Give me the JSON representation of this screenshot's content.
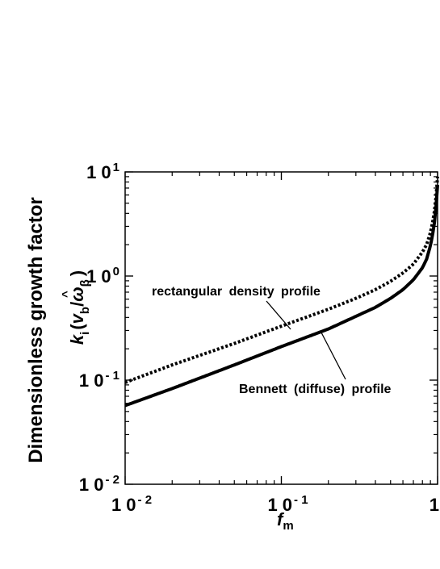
{
  "chart_data": {
    "type": "line",
    "xscale": "log",
    "yscale": "log",
    "xlim": [
      0.01,
      1
    ],
    "ylim": [
      0.01,
      10
    ],
    "grid": false,
    "xticks": [
      {
        "value": 0.01,
        "base": "1 0",
        "exp": "- 2"
      },
      {
        "value": 0.1,
        "base": "1 0",
        "exp": "- 1"
      },
      {
        "value": 1,
        "base": "1",
        "exp": ""
      }
    ],
    "yticks": [
      {
        "value": 0.01,
        "base": "1 0",
        "exp": "- 2"
      },
      {
        "value": 0.1,
        "base": "1 0",
        "exp": "- 1"
      },
      {
        "value": 1,
        "base": "1 0",
        "exp": "0"
      },
      {
        "value": 10,
        "base": "1 0",
        "exp": "1"
      }
    ],
    "xlabel": {
      "main": "f",
      "sub": "m"
    },
    "ylabel": "Dimensionless growth factor",
    "ylabel2": {
      "k": "k",
      "k_sub": "i",
      "open": "(",
      "v": "v",
      "v_sub": "b",
      "slash": "/",
      "omega": "ω",
      "hat": "^",
      "omega_sub": "β",
      "close": ")"
    },
    "series": [
      {
        "name": "rectangular density profile",
        "style": "dotted",
        "x": [
          0.01,
          0.02,
          0.05,
          0.1,
          0.2,
          0.3,
          0.4,
          0.5,
          0.6,
          0.7,
          0.8,
          0.85,
          0.9,
          0.95,
          0.98,
          1.0
        ],
        "y": [
          0.095,
          0.14,
          0.225,
          0.33,
          0.48,
          0.61,
          0.74,
          0.89,
          1.07,
          1.3,
          1.7,
          2.0,
          2.6,
          3.9,
          6.0,
          9.0
        ]
      },
      {
        "name": "Bennett (diffuse) profile",
        "style": "solid",
        "x": [
          0.01,
          0.02,
          0.05,
          0.1,
          0.2,
          0.3,
          0.4,
          0.5,
          0.6,
          0.7,
          0.8,
          0.85,
          0.9,
          0.95,
          0.98,
          1.0
        ],
        "y": [
          0.057,
          0.083,
          0.14,
          0.21,
          0.31,
          0.41,
          0.5,
          0.61,
          0.74,
          0.92,
          1.2,
          1.45,
          1.95,
          3.0,
          4.9,
          7.5
        ]
      }
    ],
    "annotations": [
      {
        "text": "rectangular density profile",
        "series": 0
      },
      {
        "text": "Bennett (diffuse) profile",
        "series": 1
      }
    ]
  }
}
